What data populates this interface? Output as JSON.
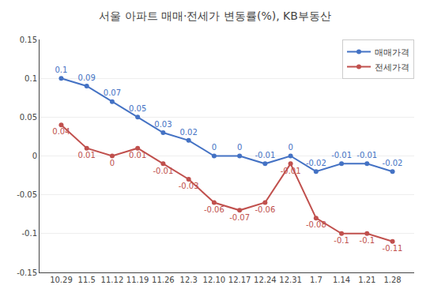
{
  "chart_data": {
    "type": "line",
    "title": "서울 아파트 매매·전세가 변동률(%), KB부동산",
    "categories": [
      "10.29",
      "11.5",
      "11.12",
      "11.19",
      "11.26",
      "12.3",
      "12.10",
      "12.17",
      "12.24",
      "12.31",
      "1.7",
      "1.14",
      "1.21",
      "1.28"
    ],
    "series": [
      {
        "name": "매매가격",
        "color": "#4472C4",
        "values": [
          0.1,
          0.09,
          0.07,
          0.05,
          0.03,
          0.02,
          0.0,
          0.0,
          -0.01,
          0.0,
          -0.02,
          -0.01,
          -0.01,
          -0.02
        ]
      },
      {
        "name": "전세가격",
        "color": "#C0504D",
        "values": [
          0.04,
          0.01,
          0.0,
          0.01,
          -0.01,
          -0.03,
          -0.06,
          -0.07,
          -0.06,
          -0.01,
          -0.08,
          -0.1,
          -0.1,
          -0.11
        ]
      }
    ],
    "ylim": [
      -0.15,
      0.15
    ],
    "yticks": [
      -0.15,
      -0.1,
      -0.05,
      0,
      0.05,
      0.1,
      0.15
    ],
    "grid": true,
    "legend": "upper right",
    "data_labels": true
  }
}
